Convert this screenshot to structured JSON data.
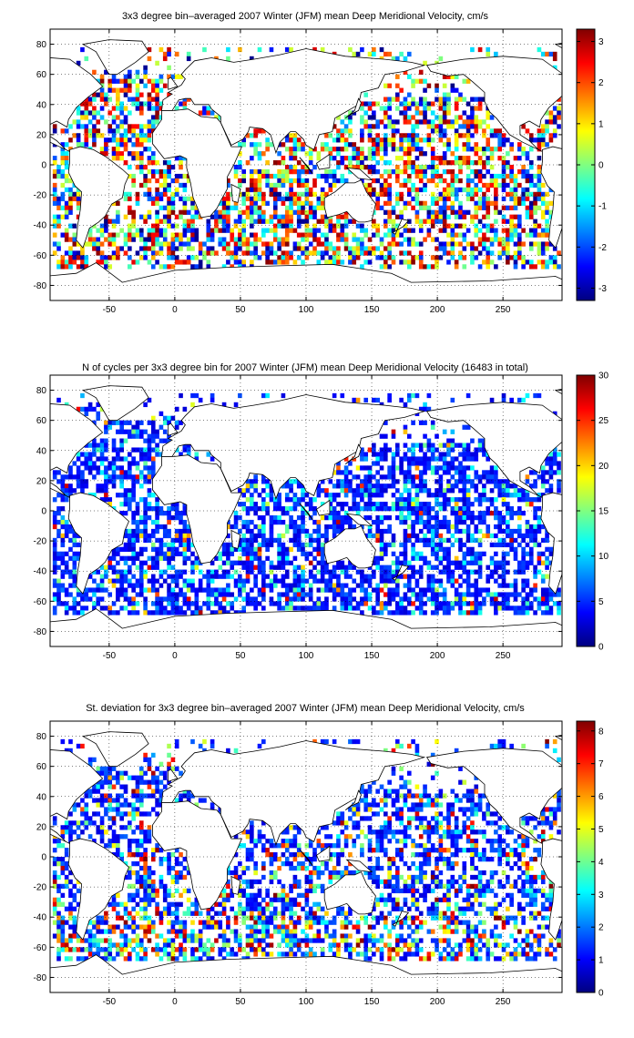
{
  "panels": [
    {
      "title": "3x3 degree bin–averaged 2007 Winter (JFM) mean Deep Meridional Velocity, cm/s",
      "colorbar_ticks": [
        "-3",
        "-2",
        "-1",
        "0",
        "1",
        "2",
        "3"
      ],
      "colorbar_range": [
        -3.3,
        3.3
      ],
      "colormap": "jet",
      "field": "deep-meridional-velocity"
    },
    {
      "title": "N of cycles per 3x3 degree bin for 2007 Winter (JFM) mean Deep Meridional Velocity (16483 in total)",
      "colorbar_ticks": [
        "0",
        "5",
        "10",
        "15",
        "20",
        "25",
        "30"
      ],
      "colorbar_range": [
        0,
        30
      ],
      "colormap": "jet",
      "field": "cycle-count"
    },
    {
      "title": "St. deviation for 3x3 degree bin–averaged 2007 Winter (JFM) mean Deep Meridional Velocity, cm/s",
      "colorbar_ticks": [
        "0",
        "1",
        "2",
        "3",
        "4",
        "5",
        "6",
        "7",
        "8"
      ],
      "colorbar_range": [
        0,
        8.3
      ],
      "colormap": "jet",
      "field": "standard-deviation"
    }
  ],
  "axes": {
    "x_ticks": [
      "-50",
      "0",
      "50",
      "100",
      "150",
      "200",
      "250"
    ],
    "y_ticks": [
      "80",
      "60",
      "40",
      "20",
      "0",
      "-20",
      "-40",
      "-60",
      "-80"
    ],
    "lon_range": [
      -95,
      295
    ],
    "lat_range": [
      -90,
      90
    ],
    "grid": true,
    "grid_style": "dotted"
  },
  "chart_data": {
    "type": "heatmap",
    "panels_count": 3,
    "bin_size_degrees": 3,
    "season": "2007 Winter (JFM)",
    "total_cycles": 16483
  }
}
